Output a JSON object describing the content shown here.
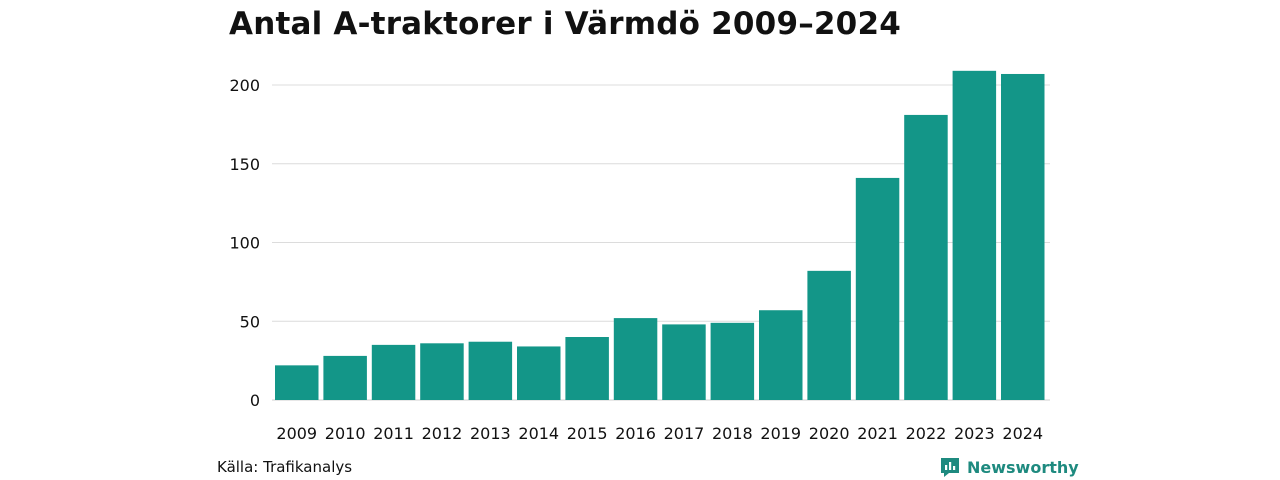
{
  "chart_data": {
    "type": "bar",
    "title": "Antal A-traktorer i Värmdö 2009–2024",
    "categories": [
      "2009",
      "2010",
      "2011",
      "2012",
      "2013",
      "2014",
      "2015",
      "2016",
      "2017",
      "2018",
      "2019",
      "2020",
      "2021",
      "2022",
      "2023",
      "2024"
    ],
    "values": [
      22,
      28,
      35,
      36,
      37,
      34,
      40,
      52,
      48,
      49,
      57,
      82,
      141,
      181,
      209,
      207
    ],
    "yticks": [
      0,
      50,
      100,
      150,
      200
    ],
    "ylim": [
      0,
      215
    ],
    "xlabel": "",
    "ylabel": "",
    "grid": true,
    "bar_color": "#139688"
  },
  "footer": {
    "source": "Källa: Trafikanalys",
    "brand": "Newsworthy",
    "brand_color": "#1e8a7f",
    "brand_icon": "bar-chart-speech-bubble-icon"
  }
}
